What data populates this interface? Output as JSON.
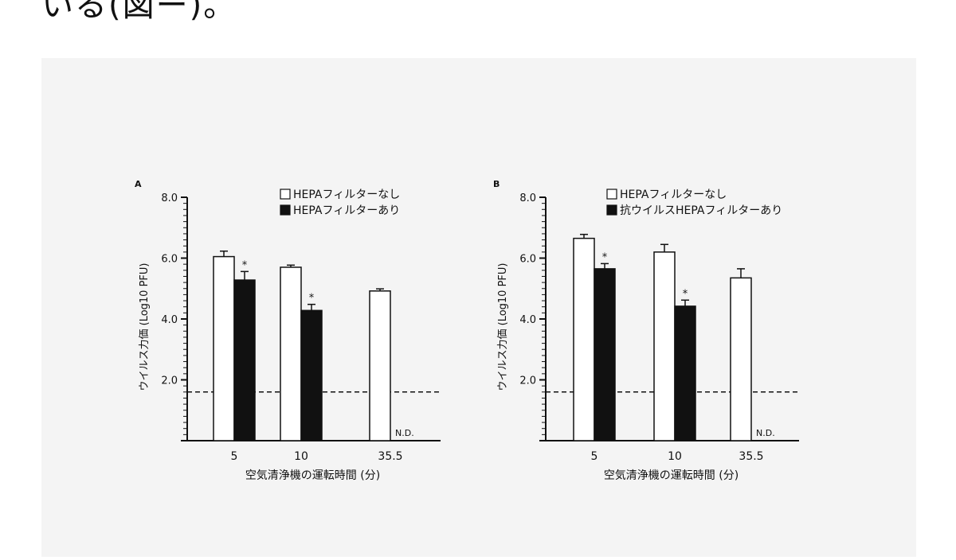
{
  "page_text": {
    "top_fragment": "いる(図ー)。"
  },
  "chart_data": [
    {
      "type": "bar",
      "panel_label": "A",
      "categories": [
        "5",
        "10",
        "35.5"
      ],
      "series": [
        {
          "name": "HEPAフィルターなし",
          "values": [
            6.05,
            5.7,
            4.92
          ],
          "errors": [
            0.18,
            0.07,
            0.07
          ]
        },
        {
          "name": "HEPAフィルターあり",
          "values": [
            5.28,
            4.28,
            null
          ],
          "errors": [
            0.28,
            0.2,
            null
          ]
        }
      ],
      "ylim": [
        0,
        8.0
      ],
      "yticks": [
        "8.0",
        "6.0",
        "4.0",
        "2.0"
      ],
      "ylabel": "ウイルス力価 (Log10 PFU)",
      "xlabel": "空気清浄機の運転時間 (分)",
      "detection_limit": 1.6,
      "significance_mark": "*",
      "not_detected_label": "N.D.",
      "legend_position": "top-right"
    },
    {
      "type": "bar",
      "panel_label": "B",
      "categories": [
        "5",
        "10",
        "35.5"
      ],
      "series": [
        {
          "name": "HEPAフィルターなし",
          "values": [
            6.65,
            6.2,
            5.35
          ],
          "errors": [
            0.13,
            0.25,
            0.3
          ]
        },
        {
          "name": "抗ウイルスHEPAフィルターあり",
          "values": [
            5.65,
            4.42,
            null
          ],
          "errors": [
            0.17,
            0.2,
            null
          ]
        }
      ],
      "ylim": [
        0,
        8.0
      ],
      "yticks": [
        "8.0",
        "6.0",
        "4.0",
        "2.0"
      ],
      "ylabel": "ウイルス力価 (Log10 PFU)",
      "xlabel": "空気清浄機の運転時間 (分)",
      "detection_limit": 1.6,
      "significance_mark": "*",
      "not_detected_label": "N.D.",
      "legend_position": "top-right"
    }
  ]
}
